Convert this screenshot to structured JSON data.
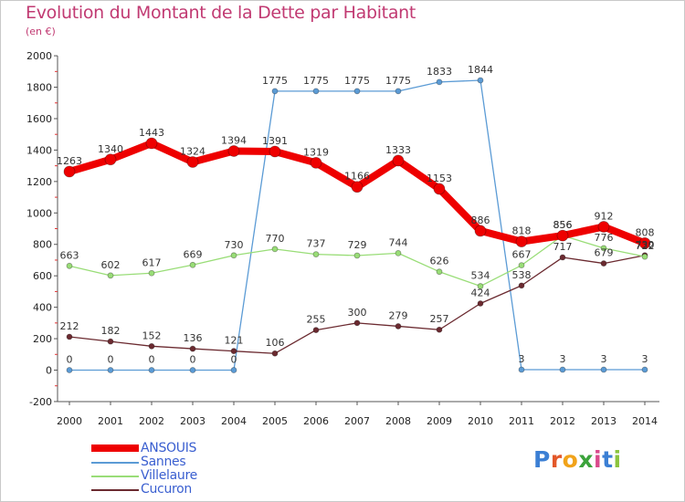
{
  "title": "Evolution du Montant de la Dette par Habitant",
  "subtitle": "(en €)",
  "brand": {
    "letters": [
      {
        "ch": "P",
        "color": "#3b7fd4"
      },
      {
        "ch": "r",
        "color": "#e3582a"
      },
      {
        "ch": "o",
        "color": "#f1a31a"
      },
      {
        "ch": "x",
        "color": "#3ba33b"
      },
      {
        "ch": "i",
        "color": "#d94a8c"
      },
      {
        "ch": "t",
        "color": "#3b7fd4"
      },
      {
        "ch": "i",
        "color": "#8bc43f"
      }
    ]
  },
  "chart_data": {
    "type": "line",
    "x": [
      "2000",
      "2001",
      "2002",
      "2003",
      "2004",
      "2005",
      "2006",
      "2007",
      "2008",
      "2009",
      "2010",
      "2011",
      "2012",
      "2013",
      "2014"
    ],
    "ylim": [
      -200,
      2000
    ],
    "yticks": [
      -200,
      0,
      200,
      400,
      600,
      800,
      1000,
      1200,
      1400,
      1600,
      1800,
      2000
    ],
    "grid": false,
    "legend_position": "bottom-left",
    "series": [
      {
        "name": "ANSOUIS",
        "color": "#ee0000",
        "values": [
          1263,
          1340,
          1443,
          1324,
          1394,
          1391,
          1319,
          1166,
          1333,
          1153,
          886,
          818,
          856,
          912,
          808
        ]
      },
      {
        "name": "Sannes",
        "color": "#5b9bd5",
        "values": [
          0,
          0,
          0,
          0,
          0,
          1775,
          1775,
          1775,
          1775,
          1833,
          1844,
          3,
          3,
          3,
          3
        ]
      },
      {
        "name": "Villelaure",
        "color": "#99dd77",
        "values": [
          663,
          602,
          617,
          669,
          730,
          770,
          737,
          729,
          744,
          626,
          534,
          667,
          856,
          776,
          722
        ]
      },
      {
        "name": "Cucuron",
        "color": "#6b2a30",
        "values": [
          212,
          182,
          152,
          136,
          121,
          106,
          255,
          300,
          279,
          257,
          424,
          538,
          717,
          679,
          730
        ]
      }
    ]
  }
}
